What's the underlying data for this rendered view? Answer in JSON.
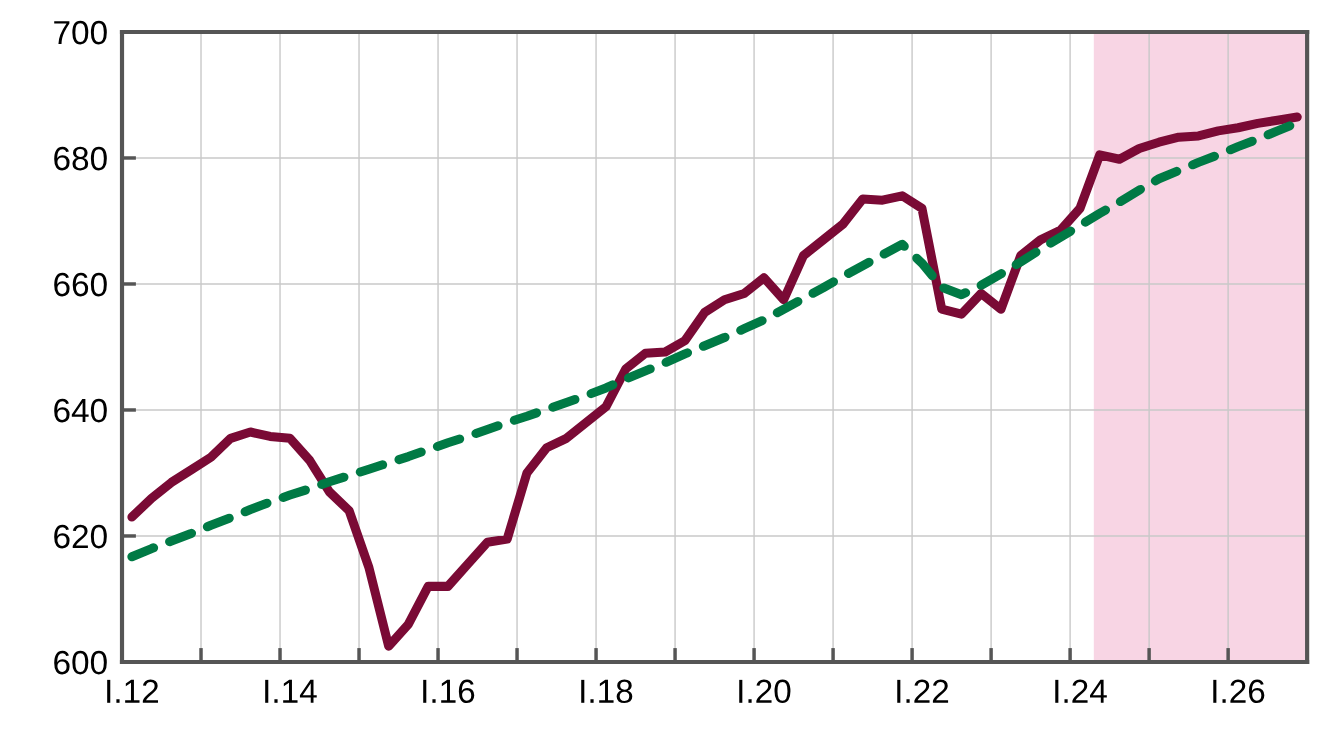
{
  "chart_data": {
    "type": "line",
    "categories": [
      "I.12",
      null,
      null,
      null,
      null,
      null,
      null,
      null,
      "I.14",
      null,
      null,
      null,
      null,
      null,
      null,
      null,
      "I.16",
      null,
      null,
      null,
      null,
      null,
      null,
      null,
      "I.18",
      null,
      null,
      null,
      null,
      null,
      null,
      null,
      "I.20",
      null,
      null,
      null,
      null,
      null,
      null,
      null,
      "I.22",
      null,
      null,
      null,
      null,
      null,
      null,
      null,
      "I.24",
      null,
      null,
      null,
      null,
      null,
      null,
      null,
      "I.26",
      null,
      null,
      null
    ],
    "series": [
      {
        "color": "#7a0a35",
        "line_style": "solid",
        "values": [
          623,
          626,
          628.5,
          630.5,
          632.5,
          635.5,
          636.5,
          635.8,
          635.5,
          632,
          627,
          624,
          615,
          602.5,
          606,
          612,
          612,
          615.5,
          619,
          619.5,
          630,
          634,
          635.5,
          638,
          640.5,
          646.5,
          649,
          649.2,
          651,
          655.5,
          657.5,
          658.5,
          661,
          657.5,
          664.5,
          667,
          669.5,
          673.5,
          673.3,
          674,
          672,
          656,
          655.2,
          658.5,
          656,
          664.5,
          667,
          668.5,
          672,
          680.5,
          679.8,
          681.5,
          682.5,
          683.3,
          683.5,
          684.3,
          684.8,
          685.5,
          686,
          686.5
        ]
      },
      {
        "color": "#007a45",
        "line_style": "dashed",
        "values": [
          616.7,
          618,
          619.2,
          620.4,
          621.7,
          622.9,
          624.2,
          625.4,
          626.5,
          627.5,
          628.6,
          629.6,
          630.6,
          631.6,
          632.6,
          633.7,
          634.8,
          635.8,
          636.9,
          638,
          639,
          640.1,
          641.2,
          642.3,
          643.5,
          644.9,
          646.2,
          647.5,
          648.9,
          650.2,
          651.5,
          652.9,
          654.3,
          656,
          657.7,
          659.4,
          661.2,
          662.9,
          664.6,
          666.3,
          663.3,
          659.5,
          658.3,
          659.8,
          661.6,
          663.5,
          665.5,
          667.4,
          669.3,
          671.2,
          673,
          674.9,
          676.7,
          678,
          679.3,
          680.5,
          681.8,
          683,
          684.3,
          685.6
        ]
      }
    ],
    "ylim": [
      600,
      700
    ],
    "yticks": [
      600,
      620,
      640,
      660,
      680,
      700
    ],
    "grid": true
  }
}
